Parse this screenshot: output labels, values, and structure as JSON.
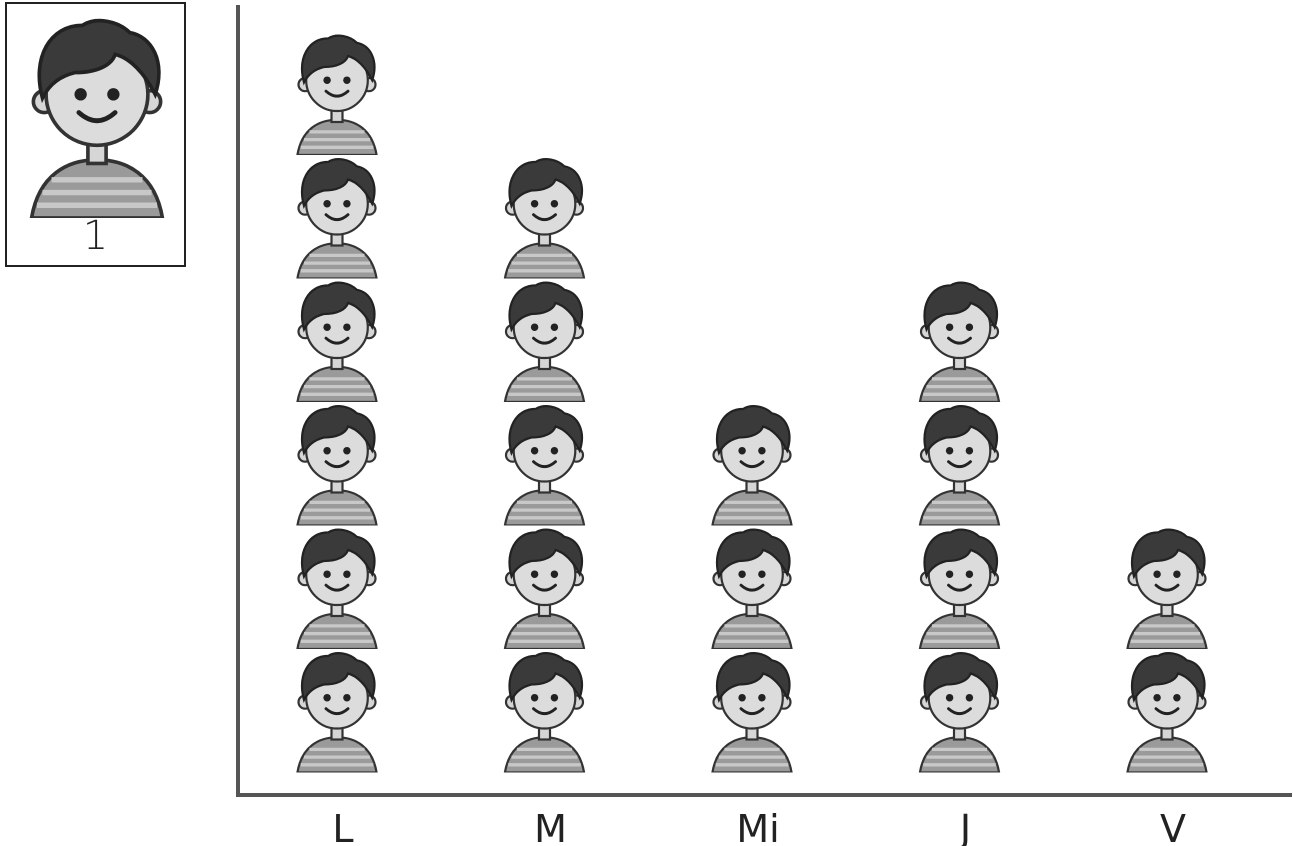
{
  "legend": {
    "icon": "child-face-icon",
    "value": "1"
  },
  "chart_data": {
    "type": "pictograph",
    "categories": [
      "L",
      "M",
      "Mi",
      "J",
      "V"
    ],
    "values": [
      6,
      5,
      3,
      4,
      2
    ],
    "unit_value": 1,
    "icon": "child-face-icon",
    "title": "",
    "xlabel": "",
    "ylabel": "",
    "grid": false
  }
}
